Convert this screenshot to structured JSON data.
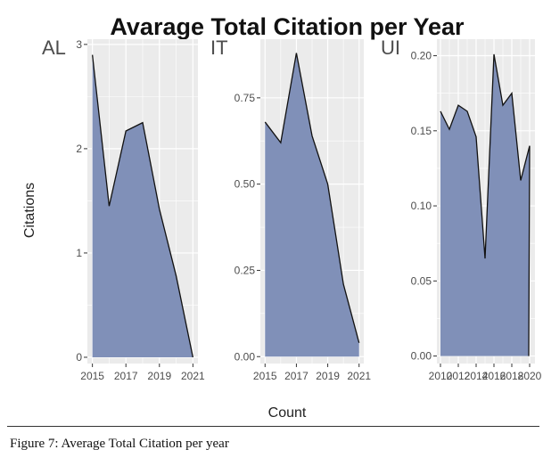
{
  "figure_caption": "Figure 7: Average Total Citation per year",
  "chart_data": {
    "type": "area",
    "title": "Avarage Total Citation per Year",
    "xlabel": "Count",
    "ylabel": "Citations",
    "fill_color": "#8090b8",
    "line_color": "#111111",
    "panel_background": "#ebebeb",
    "gridline_color": "#ffffff",
    "grid": true,
    "legend": "none",
    "panels": [
      {
        "name": "AL",
        "x": [
          2015,
          2016,
          2017,
          2018,
          2019,
          2020,
          2021
        ],
        "values": [
          2.9,
          1.45,
          2.17,
          2.25,
          1.42,
          0.78,
          0.0
        ],
        "xlim": [
          2014.7,
          2021.3
        ],
        "ylim": [
          -0.06,
          3.05
        ],
        "x_ticks": [
          2015,
          2017,
          2019,
          2021
        ],
        "x_tick_labels": [
          "2015",
          "2017",
          "2019",
          "2021"
        ],
        "y_ticks": [
          0,
          1,
          2,
          3
        ],
        "y_tick_labels": [
          "0",
          "1",
          "2",
          "3"
        ]
      },
      {
        "name": "IT",
        "x": [
          2015,
          2016,
          2017,
          2018,
          2019,
          2020,
          2021
        ],
        "values": [
          0.68,
          0.62,
          0.88,
          0.64,
          0.5,
          0.21,
          0.04
        ],
        "xlim": [
          2014.7,
          2021.3
        ],
        "ylim": [
          -0.02,
          0.92
        ],
        "x_ticks": [
          2015,
          2017,
          2019,
          2021
        ],
        "x_tick_labels": [
          "2015",
          "2017",
          "2019",
          "2021"
        ],
        "y_ticks": [
          0,
          0.25,
          0.5,
          0.75
        ],
        "y_tick_labels": [
          "0.00",
          "0.25",
          "0.50",
          "0.75"
        ]
      },
      {
        "name": "UI",
        "x": [
          2010,
          2011,
          2012,
          2013,
          2014,
          2015,
          2016,
          2017,
          2018,
          2019,
          2020
        ],
        "values": [
          0.163,
          0.151,
          0.167,
          0.163,
          0.146,
          0.065,
          0.201,
          0.167,
          0.175,
          0.117,
          0.14
        ],
        "end_value": 0.0,
        "xlim": [
          2009.6,
          2020.6
        ],
        "ylim": [
          -0.005,
          0.211
        ],
        "x_ticks": [
          2010,
          2012,
          2014,
          2016,
          2018,
          2020
        ],
        "x_tick_labels": [
          "2010",
          "2012",
          "2014",
          "2016",
          "2018",
          "2020"
        ],
        "y_ticks": [
          0,
          0.05,
          0.1,
          0.15,
          0.2
        ],
        "y_tick_labels": [
          "0.00",
          "0.05",
          "0.10",
          "0.15",
          "0.20"
        ]
      }
    ]
  }
}
